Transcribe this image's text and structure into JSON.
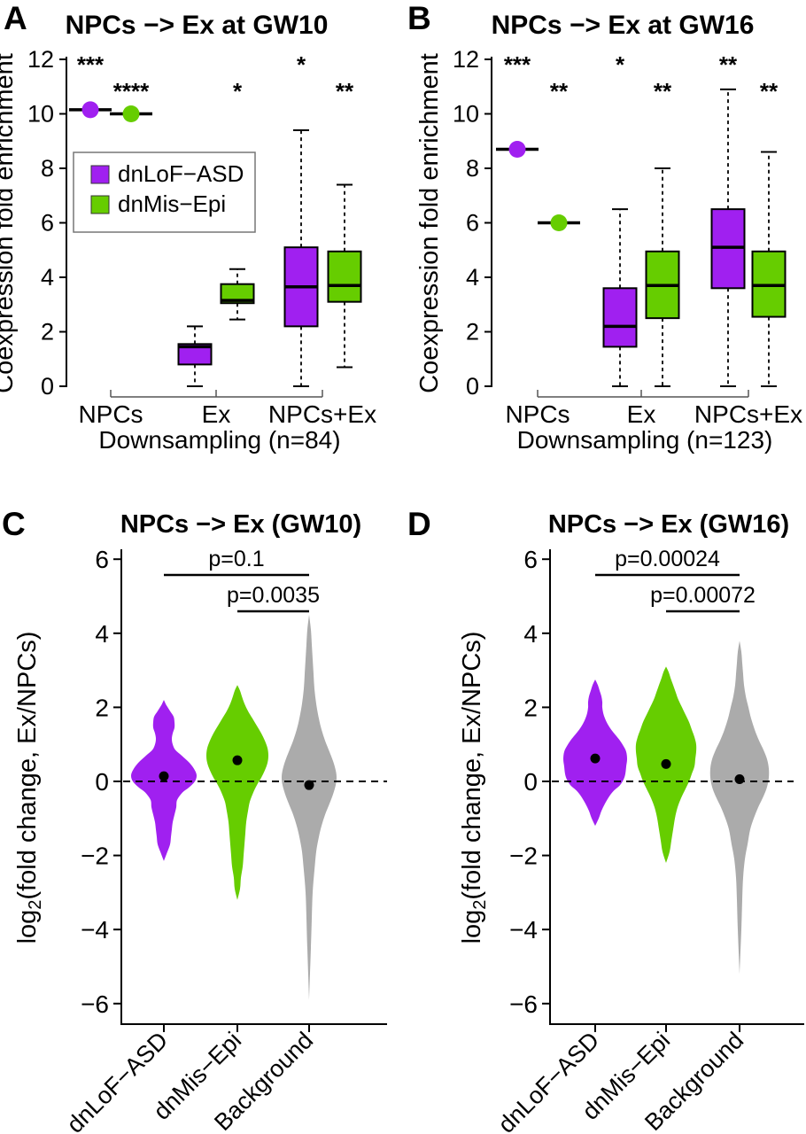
{
  "figure": {
    "background": "#ffffff",
    "text_color": "#000000"
  },
  "chart_data": [
    {
      "panel": "A",
      "type": "box",
      "title": "NPCs −> Ex at GW10",
      "ylabel": "Coexpression fold enrichment",
      "ylim": [
        0,
        12
      ],
      "yticks": [
        0,
        2,
        4,
        6,
        8,
        10,
        12
      ],
      "xlabel": "Downsampling (n=84)",
      "groups": [
        "NPCs",
        "Ex",
        "NPCs+Ex"
      ],
      "legend": [
        {
          "label": "dnLoF−ASD",
          "color": "#A020F0"
        },
        {
          "label": "dnMis−Epi",
          "color": "#66CD00"
        }
      ],
      "boxes": [
        {
          "group": "NPCs",
          "series": "dnLoF−ASD",
          "color": "#A020F0",
          "degenerate": true,
          "value": 10.15,
          "stars": "***",
          "star_row": 1
        },
        {
          "group": "NPCs",
          "series": "dnMis−Epi",
          "color": "#66CD00",
          "degenerate": true,
          "value": 10.0,
          "stars": "****",
          "star_row": 2
        },
        {
          "group": "Ex",
          "series": "dnLoF−ASD",
          "color": "#A020F0",
          "q1": 0.8,
          "median": 1.45,
          "q3": 1.55,
          "lo": 0,
          "hi": 2.2,
          "stars": "",
          "star_row": 2
        },
        {
          "group": "Ex",
          "series": "dnMis−Epi",
          "color": "#66CD00",
          "q1": 3.05,
          "median": 3.15,
          "q3": 3.75,
          "lo": 2.45,
          "hi": 4.3,
          "stars": "*",
          "star_row": 2
        },
        {
          "group": "NPCs+Ex",
          "series": "dnLoF−ASD",
          "color": "#A020F0",
          "q1": 2.2,
          "median": 3.65,
          "q3": 5.1,
          "lo": 0,
          "hi": 9.4,
          "stars": "*",
          "star_row": 1
        },
        {
          "group": "NPCs+Ex",
          "series": "dnMis−Epi",
          "color": "#66CD00",
          "q1": 3.1,
          "median": 3.7,
          "q3": 4.95,
          "lo": 0.7,
          "hi": 7.4,
          "stars": "**",
          "star_row": 2
        }
      ]
    },
    {
      "panel": "B",
      "type": "box",
      "title": "NPCs −> Ex at GW16",
      "ylabel": "Coexpression fold enrichment",
      "ylim": [
        0,
        12
      ],
      "yticks": [
        0,
        2,
        4,
        6,
        8,
        10,
        12
      ],
      "xlabel": "Downsampling (n=123)",
      "groups": [
        "NPCs",
        "Ex",
        "NPCs+Ex"
      ],
      "boxes": [
        {
          "group": "NPCs",
          "series": "dnLoF−ASD",
          "color": "#A020F0",
          "degenerate": true,
          "value": 8.7,
          "stars": "***",
          "star_row": 1
        },
        {
          "group": "NPCs",
          "series": "dnMis−Epi",
          "color": "#66CD00",
          "degenerate": true,
          "value": 6.0,
          "stars": "**",
          "star_row": 2
        },
        {
          "group": "Ex",
          "series": "dnLoF−ASD",
          "color": "#A020F0",
          "q1": 1.45,
          "median": 2.2,
          "q3": 3.6,
          "lo": 0,
          "hi": 6.5,
          "stars": "*",
          "star_row": 1
        },
        {
          "group": "Ex",
          "series": "dnMis−Epi",
          "color": "#66CD00",
          "q1": 2.5,
          "median": 3.7,
          "q3": 4.95,
          "lo": 0,
          "hi": 8.0,
          "stars": "**",
          "star_row": 2
        },
        {
          "group": "NPCs+Ex",
          "series": "dnLoF−ASD",
          "color": "#A020F0",
          "q1": 3.6,
          "median": 5.1,
          "q3": 6.5,
          "lo": 0,
          "hi": 10.9,
          "stars": "**",
          "star_row": 1
        },
        {
          "group": "NPCs+Ex",
          "series": "dnMis−Epi",
          "color": "#66CD00",
          "q1": 2.55,
          "median": 3.7,
          "q3": 4.95,
          "lo": 0,
          "hi": 8.6,
          "stars": "**",
          "star_row": 2
        }
      ]
    },
    {
      "panel": "C",
      "type": "violin",
      "title": "NPCs −> Ex (GW10)",
      "ylabel": "log2(fold change, Ex/NPCs)",
      "ylabel_parts": {
        "pre": "log",
        "sub": "2",
        "post": "(fold change, Ex/NPCs)"
      },
      "ylim": [
        -6.5,
        6.5
      ],
      "yticks": [
        -6,
        -4,
        -2,
        0,
        2,
        4,
        6
      ],
      "zero_line": 0,
      "categories": [
        "dnLoF−ASD",
        "dnMis−Epi",
        "Background"
      ],
      "pvalues": [
        {
          "label": "p=0.1",
          "from": 0,
          "to": 2,
          "row": 1
        },
        {
          "label": "p=0.0035",
          "from": 1,
          "to": 2,
          "row": 2
        }
      ],
      "violins": [
        {
          "label": "dnLoF−ASD",
          "color": "#A020F0",
          "mean": 0.14,
          "profile": [
            [
              2.2,
              0
            ],
            [
              2.05,
              3
            ],
            [
              1.9,
              7
            ],
            [
              1.75,
              11
            ],
            [
              1.6,
              12
            ],
            [
              1.45,
              12
            ],
            [
              1.3,
              10
            ],
            [
              1.15,
              9
            ],
            [
              1.0,
              10
            ],
            [
              0.85,
              13
            ],
            [
              0.7,
              20
            ],
            [
              0.5,
              29
            ],
            [
              0.3,
              35
            ],
            [
              0.15,
              37
            ],
            [
              0.0,
              35
            ],
            [
              -0.15,
              29
            ],
            [
              -0.3,
              21
            ],
            [
              -0.5,
              15
            ],
            [
              -0.7,
              14
            ],
            [
              -0.9,
              12
            ],
            [
              -1.1,
              10
            ],
            [
              -1.3,
              9
            ],
            [
              -1.5,
              8
            ],
            [
              -1.7,
              7
            ],
            [
              -1.9,
              4
            ],
            [
              -2.15,
              0
            ]
          ]
        },
        {
          "label": "dnMis−Epi",
          "color": "#66CD00",
          "mean": 0.57,
          "profile": [
            [
              2.6,
              0
            ],
            [
              2.45,
              3
            ],
            [
              2.3,
              5
            ],
            [
              2.1,
              8
            ],
            [
              1.9,
              12
            ],
            [
              1.7,
              17
            ],
            [
              1.5,
              22
            ],
            [
              1.3,
              27
            ],
            [
              1.1,
              31
            ],
            [
              0.9,
              34
            ],
            [
              0.7,
              35
            ],
            [
              0.5,
              34
            ],
            [
              0.3,
              31
            ],
            [
              0.1,
              27
            ],
            [
              -0.1,
              22
            ],
            [
              -0.3,
              18
            ],
            [
              -0.55,
              14
            ],
            [
              -0.8,
              12
            ],
            [
              -1.1,
              10
            ],
            [
              -1.4,
              9
            ],
            [
              -1.7,
              8
            ],
            [
              -2.0,
              7
            ],
            [
              -2.3,
              6
            ],
            [
              -2.6,
              4
            ],
            [
              -2.9,
              3
            ],
            [
              -3.2,
              0
            ]
          ]
        },
        {
          "label": "Background",
          "color": "#ABABAB",
          "mean": -0.1,
          "profile": [
            [
              4.5,
              0
            ],
            [
              4.1,
              2
            ],
            [
              3.7,
              3
            ],
            [
              3.3,
              4
            ],
            [
              2.9,
              5
            ],
            [
              2.5,
              6
            ],
            [
              2.1,
              8
            ],
            [
              1.7,
              11
            ],
            [
              1.4,
              14
            ],
            [
              1.1,
              18
            ],
            [
              0.8,
              23
            ],
            [
              0.55,
              27
            ],
            [
              0.3,
              30
            ],
            [
              0.1,
              31
            ],
            [
              -0.1,
              30
            ],
            [
              -0.35,
              27
            ],
            [
              -0.6,
              23
            ],
            [
              -0.9,
              18
            ],
            [
              -1.2,
              14
            ],
            [
              -1.5,
              11
            ],
            [
              -1.9,
              8
            ],
            [
              -2.4,
              6
            ],
            [
              -3.0,
              4
            ],
            [
              -3.7,
              3
            ],
            [
              -4.5,
              2
            ],
            [
              -5.9,
              0
            ]
          ]
        }
      ]
    },
    {
      "panel": "D",
      "type": "violin",
      "title": "NPCs −> Ex (GW16)",
      "ylabel": "log2(fold change, Ex/NPCs)",
      "ylabel_parts": {
        "pre": "log",
        "sub": "2",
        "post": "(fold change, Ex/NPCs)"
      },
      "ylim": [
        -6.5,
        6.5
      ],
      "yticks": [
        -6,
        -4,
        -2,
        0,
        2,
        4,
        6
      ],
      "zero_line": 0,
      "categories": [
        "dnLoF−ASD",
        "dnMis−Epi",
        "Background"
      ],
      "pvalues": [
        {
          "label": "p=0.00024",
          "from": 0,
          "to": 2,
          "row": 1
        },
        {
          "label": "p=0.00072",
          "from": 1,
          "to": 2,
          "row": 2
        }
      ],
      "violins": [
        {
          "label": "dnLoF−ASD",
          "color": "#A020F0",
          "mean": 0.62,
          "profile": [
            [
              2.75,
              0
            ],
            [
              2.6,
              3
            ],
            [
              2.45,
              5
            ],
            [
              2.3,
              7
            ],
            [
              2.15,
              8
            ],
            [
              2.0,
              8
            ],
            [
              1.85,
              9
            ],
            [
              1.7,
              11
            ],
            [
              1.55,
              14
            ],
            [
              1.4,
              18
            ],
            [
              1.25,
              23
            ],
            [
              1.1,
              28
            ],
            [
              0.95,
              32
            ],
            [
              0.8,
              35
            ],
            [
              0.6,
              36
            ],
            [
              0.4,
              35
            ],
            [
              0.2,
              34
            ],
            [
              0.05,
              32
            ],
            [
              -0.1,
              28
            ],
            [
              -0.25,
              21
            ],
            [
              -0.4,
              16
            ],
            [
              -0.6,
              11
            ],
            [
              -0.8,
              7
            ],
            [
              -1.0,
              4
            ],
            [
              -1.2,
              0
            ]
          ]
        },
        {
          "label": "dnMis−Epi",
          "color": "#66CD00",
          "mean": 0.47,
          "profile": [
            [
              3.1,
              0
            ],
            [
              2.95,
              3
            ],
            [
              2.8,
              5
            ],
            [
              2.6,
              8
            ],
            [
              2.4,
              11
            ],
            [
              2.2,
              14
            ],
            [
              2.0,
              18
            ],
            [
              1.8,
              22
            ],
            [
              1.6,
              26
            ],
            [
              1.4,
              29
            ],
            [
              1.2,
              32
            ],
            [
              1.0,
              34
            ],
            [
              0.8,
              34
            ],
            [
              0.6,
              33
            ],
            [
              0.4,
              32
            ],
            [
              0.2,
              29
            ],
            [
              0.0,
              26
            ],
            [
              -0.2,
              22
            ],
            [
              -0.45,
              17
            ],
            [
              -0.7,
              13
            ],
            [
              -1.0,
              10
            ],
            [
              -1.3,
              8
            ],
            [
              -1.6,
              6
            ],
            [
              -1.9,
              4
            ],
            [
              -2.2,
              0
            ]
          ]
        },
        {
          "label": "Background",
          "color": "#ABABAB",
          "mean": 0.06,
          "profile": [
            [
              3.8,
              0
            ],
            [
              3.5,
              2
            ],
            [
              3.2,
              3
            ],
            [
              2.9,
              4
            ],
            [
              2.6,
              5
            ],
            [
              2.3,
              7
            ],
            [
              2.0,
              10
            ],
            [
              1.7,
              13
            ],
            [
              1.4,
              17
            ],
            [
              1.1,
              22
            ],
            [
              0.85,
              27
            ],
            [
              0.6,
              31
            ],
            [
              0.35,
              33
            ],
            [
              0.1,
              33
            ],
            [
              -0.15,
              31
            ],
            [
              -0.4,
              27
            ],
            [
              -0.7,
              21
            ],
            [
              -1.0,
              16
            ],
            [
              -1.3,
              12
            ],
            [
              -1.7,
              9
            ],
            [
              -2.1,
              6
            ],
            [
              -2.6,
              4
            ],
            [
              -3.2,
              3
            ],
            [
              -4.0,
              2
            ],
            [
              -5.2,
              0
            ]
          ]
        }
      ]
    }
  ]
}
